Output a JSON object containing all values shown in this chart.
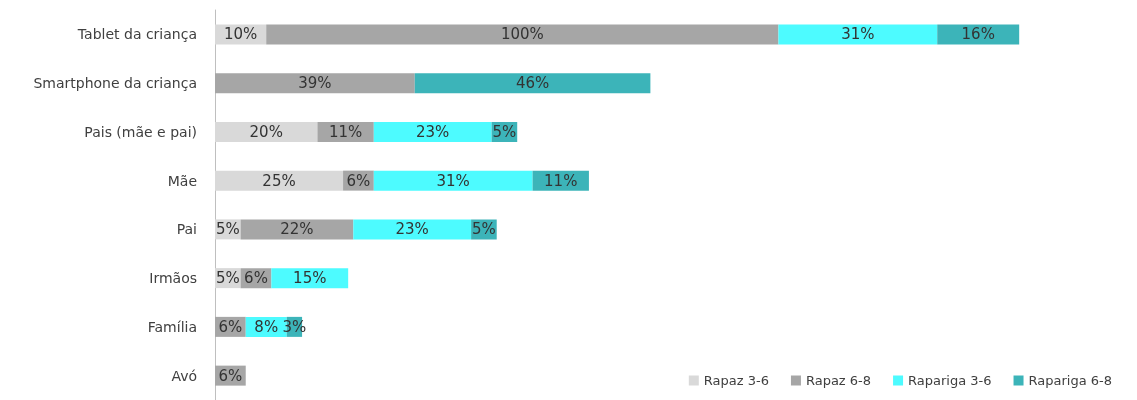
{
  "chart_data": {
    "type": "bar",
    "orientation": "horizontal",
    "stacked": true,
    "tick_labels": "y",
    "legend": "bottom right",
    "categories": [
      "Tablet da criança",
      "Smartphone da criança",
      "Pais (mãe e pai)",
      "Mãe",
      "Pai",
      "Irmãos",
      "Família",
      "Avó"
    ],
    "series": [
      {
        "name": "Rapaz 3-6",
        "color": "#d9d9d9",
        "values": [
          10,
          null,
          20,
          25,
          5,
          5,
          null,
          null
        ],
        "value_labels": [
          "10%",
          null,
          "20%",
          "25%",
          "5%",
          "5%",
          null,
          null
        ]
      },
      {
        "name": "Rapaz 6-8",
        "color": "#a6a6a6",
        "values": [
          100,
          39,
          11,
          6,
          22,
          6,
          6,
          6
        ],
        "value_labels": [
          "100%",
          "39%",
          "11%",
          "6%",
          "22%",
          "6%",
          "6%",
          "6%"
        ]
      },
      {
        "name": "Rapariga 3-6",
        "color": "#4dfbff",
        "values": [
          31,
          null,
          23,
          31,
          23,
          15,
          8,
          null
        ],
        "value_labels": [
          "31%",
          null,
          "23%",
          "31%",
          "23%",
          "15%",
          "8%",
          null
        ]
      },
      {
        "name": "Rapariga 6-8",
        "color": "#3cb4b9",
        "values": [
          16,
          46,
          5,
          11,
          5,
          null,
          3,
          null
        ],
        "value_labels": [
          "16%",
          "46%",
          "5%",
          "11%",
          "5%",
          null,
          "3%",
          null
        ]
      }
    ]
  }
}
